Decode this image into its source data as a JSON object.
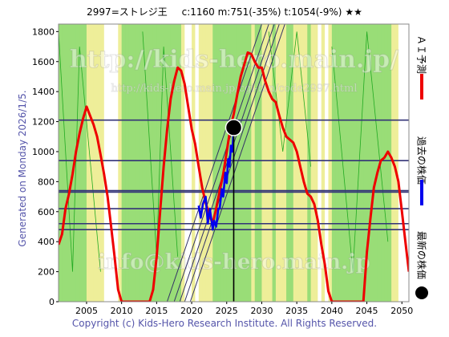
{
  "header": {
    "code_name": "2997=ストレジ王",
    "current": "c:1160",
    "m_value": "m:751(-35%)",
    "t_value": "t:1054(-9%)",
    "rating": "★★"
  },
  "side_text": "Generated on Monday 2026/1/5.",
  "copyright": "Copyright (c) Kids-Hero Research Institute. All Rights Reserved.",
  "watermarks": {
    "site": "http://kids-hero.main.jp/",
    "sub": "http://kids-hero.main.jp/cgi-bin/code2997.html",
    "mail": "info@kids-hero.main.jp"
  },
  "legend": {
    "forecast": "ＡＩ予測",
    "past": "過去の株価",
    "latest": "最新の株価"
  },
  "colors": {
    "forecast": "#ee0000",
    "past": "#0000ee",
    "latest": "#000000",
    "band_green": "#99dd77",
    "band_yellow": "#eeee99",
    "band_white": "#ffffff",
    "hline": "#333377",
    "trend": "#333366",
    "thin_green": "#22aa22"
  },
  "chart_data": {
    "type": "line",
    "xlim": [
      2001,
      2051
    ],
    "ylim": [
      0,
      1850
    ],
    "x_ticks": [
      2005,
      2010,
      2015,
      2020,
      2025,
      2030,
      2035,
      2040,
      2045,
      2050
    ],
    "y_ticks": [
      0,
      200,
      400,
      600,
      800,
      1000,
      1200,
      1400,
      1600,
      1800
    ],
    "horizontal_levels": [
      480,
      520,
      620,
      730,
      740,
      940,
      1210
    ],
    "latest_point": {
      "x": 2026,
      "y": 1160
    },
    "vertical_marker_x": 2026,
    "series": [
      {
        "role": "forecast",
        "x": [
          2001.0,
          2001.5,
          2002.0,
          2002.5,
          2003.0,
          2003.5,
          2004.0,
          2004.5,
          2005.0,
          2005.5,
          2006.0,
          2006.5,
          2007.0,
          2007.5,
          2008.0,
          2008.5,
          2009.0,
          2009.5,
          2010.0,
          2010.5,
          2011.0,
          2011.5,
          2012.0,
          2012.5,
          2013.0,
          2013.5,
          2014.0,
          2014.5,
          2015.0,
          2015.5,
          2016.0,
          2016.5,
          2017.0,
          2017.5,
          2018.0,
          2018.5,
          2019.0,
          2019.5,
          2020.0,
          2020.5,
          2021.0,
          2021.5,
          2022.0,
          2022.5,
          2023.0,
          2023.5,
          2024.0,
          2024.5,
          2025.0,
          2025.5,
          2026.0,
          2026.5,
          2027.0,
          2027.5,
          2028.0,
          2028.5,
          2029.0,
          2029.5,
          2030.0,
          2030.5,
          2031.0,
          2031.5,
          2032.0,
          2032.5,
          2033.0,
          2033.5,
          2034.0,
          2034.5,
          2035.0,
          2035.5,
          2036.0,
          2036.5,
          2037.0,
          2037.5,
          2038.0,
          2038.5,
          2039.0,
          2039.5,
          2040.0,
          2040.5,
          2041.0,
          2041.5,
          2042.0,
          2042.5,
          2043.0,
          2043.5,
          2044.0,
          2044.5,
          2045.0,
          2045.5,
          2046.0,
          2046.5,
          2047.0,
          2047.5,
          2048.0,
          2048.5,
          2049.0,
          2049.5,
          2050.0,
          2050.5,
          2051.0
        ],
        "y": [
          380,
          450,
          620,
          720,
          850,
          1000,
          1120,
          1220,
          1300,
          1240,
          1180,
          1100,
          980,
          850,
          700,
          500,
          300,
          80,
          0,
          0,
          0,
          0,
          0,
          0,
          0,
          0,
          0,
          80,
          300,
          600,
          900,
          1150,
          1350,
          1470,
          1560,
          1540,
          1450,
          1300,
          1150,
          1050,
          900,
          760,
          660,
          580,
          520,
          620,
          740,
          850,
          1000,
          1150,
          1250,
          1380,
          1500,
          1580,
          1660,
          1650,
          1600,
          1560,
          1560,
          1470,
          1400,
          1350,
          1330,
          1240,
          1160,
          1100,
          1080,
          1060,
          1000,
          900,
          800,
          720,
          700,
          650,
          540,
          380,
          250,
          70,
          0,
          0,
          0,
          0,
          0,
          0,
          0,
          0,
          0,
          0,
          330,
          550,
          760,
          860,
          940,
          960,
          1000,
          960,
          900,
          800,
          600,
          400,
          200
        ]
      },
      {
        "role": "past",
        "x": [
          2021.0,
          2021.3,
          2021.6,
          2022.0,
          2022.3,
          2022.6,
          2023.0,
          2023.2,
          2023.5,
          2023.8,
          2024.0,
          2024.3,
          2024.5,
          2024.8,
          2025.0,
          2025.2,
          2025.4,
          2025.6,
          2025.8,
          2026.0
        ],
        "y": [
          640,
          560,
          650,
          700,
          520,
          620,
          480,
          540,
          500,
          620,
          620,
          750,
          700,
          860,
          790,
          950,
          900,
          1040,
          1000,
          1160
        ]
      }
    ]
  }
}
